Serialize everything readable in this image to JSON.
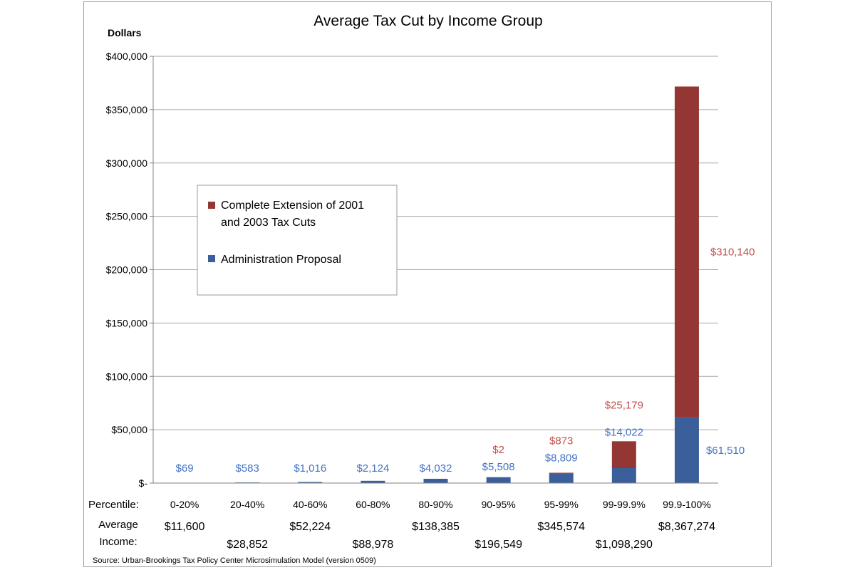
{
  "colors": {
    "extension": "#943634",
    "admin": "#3A5F9B",
    "extension_label": "#C0504D",
    "admin_label": "#4472C4",
    "grid": "#a6a6a6"
  },
  "chart_data": {
    "type": "bar",
    "stacked": true,
    "title": "Average Tax Cut by Income Group",
    "ylabel": "Dollars",
    "ylim": [
      0,
      400000
    ],
    "yticks": [
      0,
      50000,
      100000,
      150000,
      200000,
      250000,
      300000,
      350000,
      400000
    ],
    "ytick_labels": [
      "$-",
      "$50,000",
      "$100,000",
      "$150,000",
      "$200,000",
      "$250,000",
      "$300,000",
      "$350,000",
      "$400,000"
    ],
    "grid": true,
    "legend_position": "center-left",
    "percentile_label": "Percentile:",
    "income_label_line1": "Average",
    "income_label_line2": "Income:",
    "categories": [
      "0-20%",
      "20-40%",
      "40-60%",
      "60-80%",
      "80-90%",
      "90-95%",
      "95-99%",
      "99-99.9%",
      "99.9-100%"
    ],
    "average_income": [
      "$11,600",
      "$28,852",
      "$52,224",
      "$88,978",
      "$138,385",
      "$196,549",
      "$345,574",
      "$1,098,290",
      "$8,367,274"
    ],
    "series": [
      {
        "name": "Administration Proposal",
        "values": [
          69,
          583,
          1016,
          2124,
          4032,
          5508,
          8809,
          14022,
          61510
        ],
        "labels": [
          "$69",
          "$583",
          "$1,016",
          "$2,124",
          "$4,032",
          "$5,508",
          "$8,809",
          "$14,022",
          "$61,510"
        ]
      },
      {
        "name": "Complete Extension of 2001 and 2003 Tax Cuts",
        "name_line1": "Complete Extension of 2001",
        "name_line2": "and 2003 Tax Cuts",
        "values": [
          0,
          0,
          0,
          0,
          0,
          2,
          873,
          25179,
          310140
        ],
        "labels": [
          "",
          "",
          "",
          "",
          "",
          "$2",
          "$873",
          "$25,179",
          "$310,140"
        ]
      }
    ],
    "source": "Source: Urban-Brookings Tax Policy Center Microsimulation Model (version 0509)"
  }
}
